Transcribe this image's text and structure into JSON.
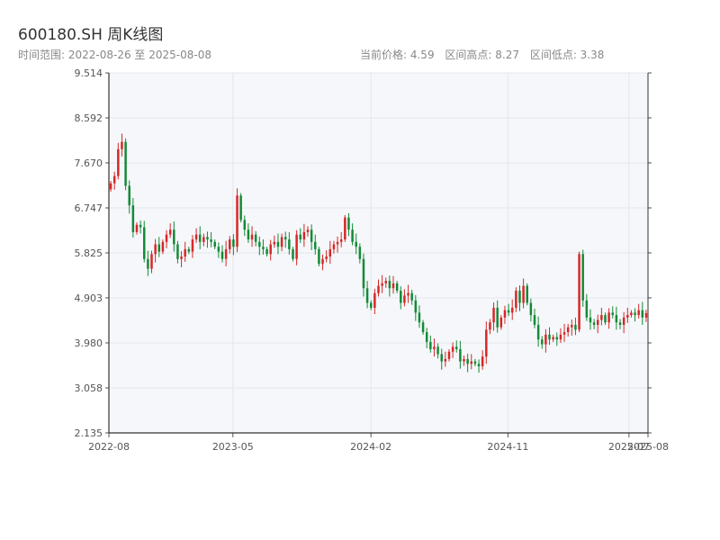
{
  "header": {
    "title": "600180.SH 周K线图",
    "range_text": "时间范围: 2022-08-26 至 2025-08-08",
    "current_price": "当前价格: 4.59",
    "range_high": "区间高点: 8.27",
    "range_low": "区间低点: 3.38"
  },
  "colors": {
    "up": "#d62728",
    "down": "#138a36",
    "plot_bg": "#f5f7fa",
    "grid": "#e3e7ee"
  },
  "chart_data": {
    "type": "candlestick",
    "title": "600180.SH 周K线图",
    "xlabel": "",
    "ylabel": "",
    "ylim": [
      2.135,
      9.514
    ],
    "yticks": [
      "2.135",
      "3.058",
      "3.980",
      "4.903",
      "5.825",
      "6.747",
      "7.670",
      "8.592",
      "9.514"
    ],
    "xticks": [
      {
        "date": "2022-08-26",
        "label": "2022-08"
      },
      {
        "date": "2023-05-01",
        "label": "2023-05"
      },
      {
        "date": "2024-02-01",
        "label": "2024-02"
      },
      {
        "date": "2024-11-01",
        "label": "2024-11"
      },
      {
        "date": "2025-07-01",
        "label": "2025-07"
      },
      {
        "date": "2025-08-08",
        "label": "2025-08"
      }
    ],
    "grid": true,
    "weekly_close": [
      7.25,
      7.4,
      7.95,
      8.1,
      7.2,
      6.8,
      6.25,
      6.4,
      6.35,
      5.7,
      5.5,
      5.8,
      6.0,
      5.85,
      6.05,
      6.2,
      6.3,
      6.0,
      5.7,
      5.75,
      5.9,
      5.85,
      6.1,
      6.2,
      6.05,
      6.15,
      6.1,
      6.05,
      5.95,
      5.85,
      5.7,
      5.9,
      6.1,
      5.95,
      7.0,
      6.5,
      6.3,
      6.1,
      6.2,
      6.05,
      5.95,
      5.9,
      5.8,
      6.0,
      6.05,
      5.95,
      6.15,
      6.1,
      5.9,
      5.7,
      6.2,
      6.1,
      6.25,
      6.3,
      6.05,
      5.9,
      5.6,
      5.7,
      5.75,
      5.9,
      6.0,
      6.05,
      6.1,
      6.55,
      6.3,
      6.05,
      5.95,
      5.7,
      5.1,
      4.8,
      4.7,
      5.0,
      5.15,
      5.2,
      5.25,
      5.1,
      5.2,
      5.05,
      4.8,
      4.95,
      5.0,
      4.85,
      4.6,
      4.4,
      4.2,
      4.0,
      3.85,
      3.9,
      3.75,
      3.6,
      3.65,
      3.8,
      3.9,
      3.85,
      3.6,
      3.65,
      3.55,
      3.6,
      3.55,
      3.5,
      3.7,
      4.25,
      4.4,
      4.7,
      4.3,
      4.5,
      4.65,
      4.6,
      4.7,
      5.05,
      4.8,
      5.15,
      4.8,
      4.55,
      4.35,
      4.05,
      3.95,
      4.15,
      4.05,
      4.1,
      4.05,
      4.15,
      4.2,
      4.3,
      4.35,
      4.25,
      5.8,
      4.85,
      4.5,
      4.4,
      4.35,
      4.45,
      4.55,
      4.4,
      4.6,
      4.55,
      4.4,
      4.35,
      4.5,
      4.55,
      4.6,
      4.55,
      4.65,
      4.5,
      4.59
    ]
  }
}
